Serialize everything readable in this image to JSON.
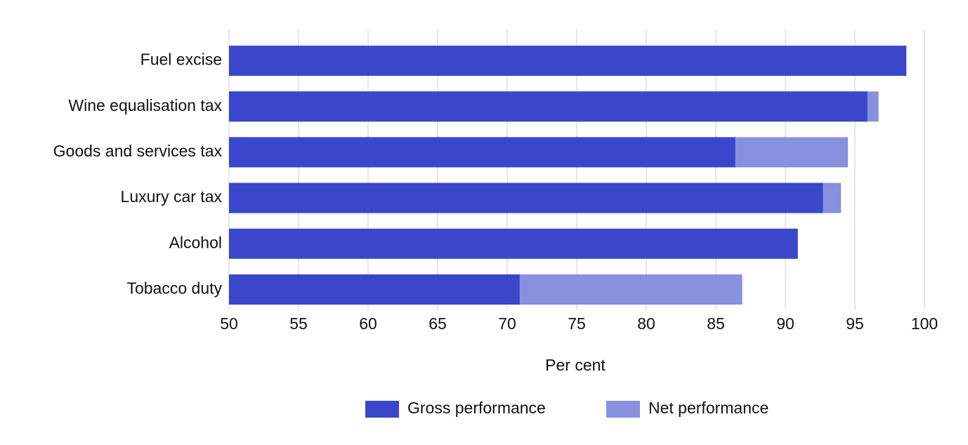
{
  "chart_data": {
    "type": "bar",
    "orientation": "horizontal",
    "barmode": "overlay",
    "categories": [
      "Fuel excise",
      "Wine equalisation tax",
      "Goods and services tax",
      "Luxury car tax",
      "Alcohol",
      "Tobacco duty"
    ],
    "series": [
      {
        "name": "Gross performance",
        "color": "#3a47cb",
        "values": [
          98.7,
          95.9,
          86.4,
          92.7,
          90.9,
          70.9
        ]
      },
      {
        "name": "Net performance",
        "color": "#8890e0",
        "values": [
          null,
          96.7,
          94.5,
          94.0,
          null,
          86.9
        ]
      }
    ],
    "xlim": [
      50,
      100
    ],
    "xticks": [
      50,
      55,
      60,
      65,
      70,
      75,
      80,
      85,
      90,
      95,
      100
    ],
    "xlabel": "Per cent",
    "grid": true,
    "legend": "bottom"
  }
}
